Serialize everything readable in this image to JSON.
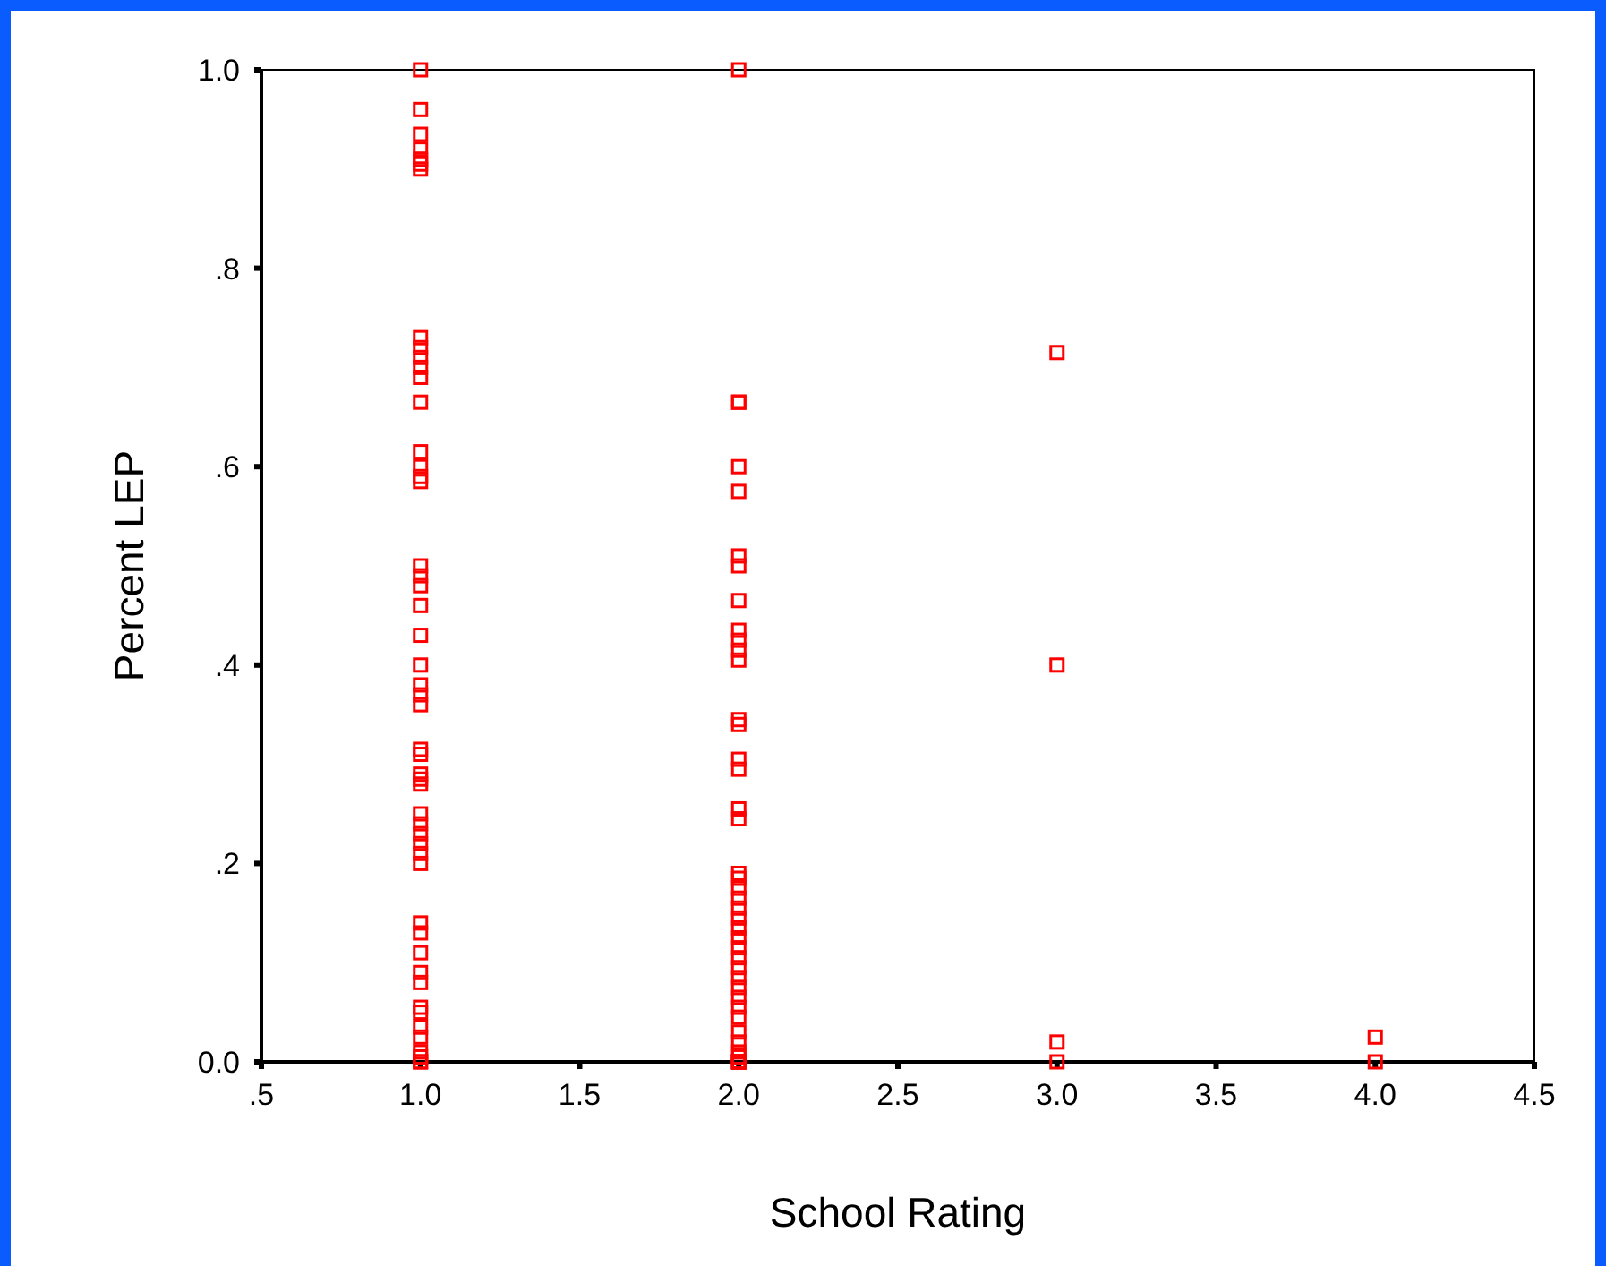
{
  "chart_data": {
    "type": "scatter",
    "xlabel": "School Rating",
    "ylabel": "Percent LEP",
    "marker": "square",
    "grid": false,
    "xlim": [
      0.5,
      4.5
    ],
    "xticks": [
      {
        "value": 0.5,
        "label": ".5"
      },
      {
        "value": 1,
        "label": "1.0"
      },
      {
        "value": 1.5,
        "label": "1.5"
      },
      {
        "value": 2,
        "label": "2.0"
      },
      {
        "value": 2.5,
        "label": "2.5"
      },
      {
        "value": 3,
        "label": "3.0"
      },
      {
        "value": 3.5,
        "label": "3.5"
      },
      {
        "value": 4,
        "label": "4.0"
      },
      {
        "value": 4.5,
        "label": "4.5"
      }
    ],
    "ylim": [
      0,
      1
    ],
    "yticks": [
      {
        "value": 0,
        "label": "0.0"
      },
      {
        "value": 0.2,
        "label": ".2"
      },
      {
        "value": 0.4,
        "label": ".4"
      },
      {
        "value": 0.6,
        "label": ".6"
      },
      {
        "value": 0.8,
        "label": ".8"
      },
      {
        "value": 1,
        "label": "1.0"
      }
    ],
    "series": [
      {
        "color": "#ff0000",
        "x": [
          1,
          1,
          1,
          1,
          1,
          1,
          1,
          1,
          1,
          1,
          1,
          1,
          1,
          1,
          1,
          1,
          1,
          1,
          1,
          1,
          1,
          1,
          1,
          1,
          1,
          1,
          1,
          1,
          1,
          1,
          1,
          1,
          1,
          1,
          1,
          1,
          1,
          1,
          1,
          1,
          1,
          1,
          1,
          1,
          1,
          1,
          1,
          1,
          1,
          1,
          2,
          2,
          2,
          2,
          2,
          2,
          2,
          2,
          2,
          2,
          2,
          2,
          2,
          2,
          2,
          2,
          2,
          2,
          2,
          2,
          2,
          2,
          2,
          2,
          2,
          2,
          2,
          2,
          2,
          2,
          2,
          2,
          2,
          2,
          2,
          2,
          2,
          2,
          2,
          2,
          2,
          2,
          2,
          3,
          3,
          3,
          3,
          4,
          4
        ],
        "values": [
          1.0,
          0.96,
          0.935,
          0.92,
          0.91,
          0.905,
          0.9,
          0.73,
          0.72,
          0.71,
          0.7,
          0.69,
          0.665,
          0.615,
          0.6,
          0.59,
          0.585,
          0.5,
          0.49,
          0.48,
          0.46,
          0.43,
          0.4,
          0.38,
          0.37,
          0.36,
          0.315,
          0.31,
          0.29,
          0.285,
          0.28,
          0.25,
          0.24,
          0.23,
          0.22,
          0.21,
          0.2,
          0.14,
          0.13,
          0.11,
          0.09,
          0.08,
          0.055,
          0.05,
          0.035,
          0.025,
          0.0,
          0.0,
          0.005,
          0.01,
          1.0,
          0.665,
          0.665,
          0.6,
          0.575,
          0.51,
          0.5,
          0.465,
          0.435,
          0.425,
          0.415,
          0.405,
          0.345,
          0.34,
          0.305,
          0.295,
          0.255,
          0.245,
          0.19,
          0.185,
          0.175,
          0.165,
          0.155,
          0.145,
          0.135,
          0.125,
          0.115,
          0.105,
          0.095,
          0.085,
          0.075,
          0.065,
          0.055,
          0.045,
          0.03,
          0.02,
          0.01,
          0.005,
          0,
          0,
          0,
          0,
          0,
          0.715,
          0.4,
          0.02,
          0,
          0.025,
          0
        ]
      }
    ]
  }
}
